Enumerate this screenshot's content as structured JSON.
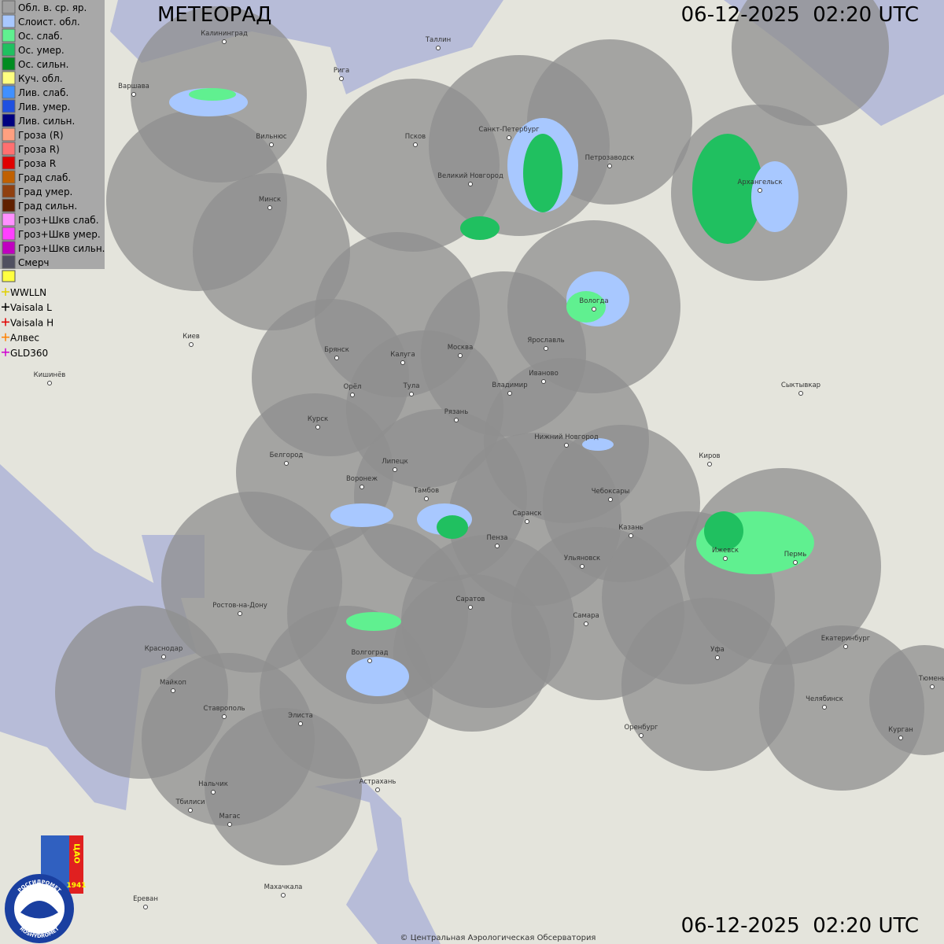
{
  "header": {
    "title": "МЕТЕОРАД",
    "timestamp": "06-12-2025  02:20 UTC"
  },
  "legend": {
    "items": [
      {
        "label": "Обл. в. ср. яр.",
        "color": "#a0a0a0"
      },
      {
        "label": "Слоист. обл.",
        "color": "#a8c8ff"
      },
      {
        "label": "Ос. слаб.",
        "color": "#60f090"
      },
      {
        "label": "Ос. умер.",
        "color": "#20c060"
      },
      {
        "label": "Ос. сильн.",
        "color": "#008c20"
      },
      {
        "label": "Куч. обл.",
        "color": "#ffff80"
      },
      {
        "label": "Лив. слаб.",
        "color": "#4090ff"
      },
      {
        "label": "Лив. умер.",
        "color": "#2050e0"
      },
      {
        "label": "Лив. сильн.",
        "color": "#000080"
      },
      {
        "label": "Гроза (R)",
        "color": "#ffa080"
      },
      {
        "label": "Гроза R)",
        "color": "#ff7070"
      },
      {
        "label": "Гроза R",
        "color": "#e00000"
      },
      {
        "label": "Град слаб.",
        "color": "#c06000"
      },
      {
        "label": "Град умер.",
        "color": "#904010"
      },
      {
        "label": "Град сильн.",
        "color": "#602000"
      },
      {
        "label": "Гроз+Шкв слаб.",
        "color": "#ff90ff"
      },
      {
        "label": "Гроз+Шкв умер.",
        "color": "#ff40ff"
      },
      {
        "label": "Гроз+Шкв сильн.",
        "color": "#c000c0"
      },
      {
        "label": "Смерч",
        "color": "#505060"
      }
    ]
  },
  "lightning": [
    {
      "label": "WWLLN",
      "color": "#e0d000"
    },
    {
      "label": "Vaisala L",
      "color": "#000000"
    },
    {
      "label": "Vaisala H",
      "color": "#e00000"
    },
    {
      "label": "Алвес",
      "color": "#ff8000"
    },
    {
      "label": "GLD360",
      "color": "#d000d0"
    }
  ],
  "cities": [
    "Калининград",
    "Таллин",
    "Рига",
    "Варшава",
    "Вильнюс",
    "Псков",
    "Санкт-Петербург",
    "Великий Новгород",
    "Петрозаводск",
    "Архангельск",
    "Минск",
    "Вологда",
    "Киев",
    "Брянск",
    "Калуга",
    "Москва",
    "Ярославль",
    "Иваново",
    "Кишинёв",
    "Орёл",
    "Тула",
    "Владимир",
    "Сыктывкар",
    "Курск",
    "Рязань",
    "Нижний Новгород",
    "Белгород",
    "Липецк",
    "Киров",
    "Воронеж",
    "Тамбов",
    "Чебоксары",
    "Саранск",
    "Казань",
    "Пенза",
    "Ижевск",
    "Пермь",
    "Ульяновск",
    "Ростов-на-Дону",
    "Саратов",
    "Самара",
    "Краснодар",
    "Волгоград",
    "Екатеринбург",
    "Уфа",
    "Майкоп",
    "Тюмень",
    "Челябинск",
    "Ставрополь",
    "Элиста",
    "Оренбург",
    "Курган",
    "Астрахань",
    "Нальчик",
    "Магас",
    "Тбилиси",
    "Махачкала",
    "Ереван"
  ],
  "logo": {
    "org": "ЦАО",
    "year": "1941",
    "ring_ru": "РОСГИДРОМЕТ",
    "ring_en": "ROSHYDROMET"
  },
  "footer": {
    "copyright": "© Центральная Аэрологическая Обсерватория"
  }
}
